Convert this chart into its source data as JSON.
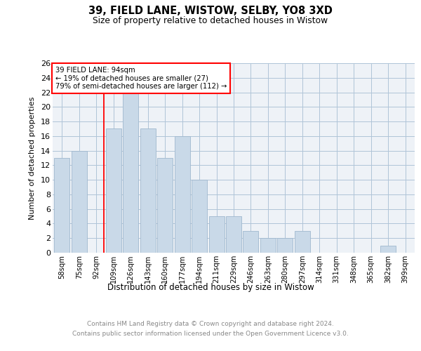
{
  "title1": "39, FIELD LANE, WISTOW, SELBY, YO8 3XD",
  "title2": "Size of property relative to detached houses in Wistow",
  "xlabel": "Distribution of detached houses by size in Wistow",
  "ylabel": "Number of detached properties",
  "categories": [
    "58sqm",
    "75sqm",
    "92sqm",
    "109sqm",
    "126sqm",
    "143sqm",
    "160sqm",
    "177sqm",
    "194sqm",
    "211sqm",
    "229sqm",
    "246sqm",
    "263sqm",
    "280sqm",
    "297sqm",
    "314sqm",
    "331sqm",
    "348sqm",
    "365sqm",
    "382sqm",
    "399sqm"
  ],
  "values": [
    13,
    14,
    0,
    17,
    22,
    17,
    13,
    16,
    10,
    5,
    5,
    3,
    2,
    2,
    3,
    0,
    0,
    0,
    0,
    1,
    0
  ],
  "bar_color": "#c9d9e8",
  "bar_edge_color": "#a0b8ce",
  "grid_color": "#b0c4d8",
  "background_color": "#eef2f7",
  "annotation_text": "39 FIELD LANE: 94sqm\n← 19% of detached houses are smaller (27)\n79% of semi-detached houses are larger (112) →",
  "annotation_box_color": "white",
  "annotation_box_edge": "red",
  "vline_color": "red",
  "ylim": [
    0,
    26
  ],
  "yticks": [
    0,
    2,
    4,
    6,
    8,
    10,
    12,
    14,
    16,
    18,
    20,
    22,
    24,
    26
  ],
  "footer": "Contains HM Land Registry data © Crown copyright and database right 2024.\nContains public sector information licensed under the Open Government Licence v3.0.",
  "footer_color": "#888888"
}
